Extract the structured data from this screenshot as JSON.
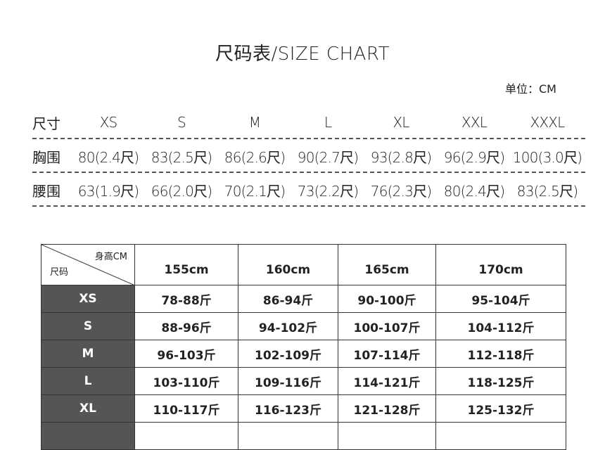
{
  "title": "尺码表/SIZE CHART",
  "unit": "单位：CM",
  "size_rows": [
    {
      "label": "尺寸",
      "values": [
        "XS",
        "S",
        "M",
        "L",
        "XL",
        "XXL",
        "XXXL"
      ]
    },
    {
      "label": "胸围",
      "values": [
        "80(2.4尺)",
        "83(2.5尺)",
        "86(2.6尺)",
        "90(2.7尺)",
        "93(2.8尺)",
        "96(2.9尺)",
        "100(3.0尺)"
      ]
    },
    {
      "label": "腰围",
      "values": [
        "63(1.9尺)",
        "66(2.0尺)",
        "70(2.1尺)",
        "73(2.2尺)",
        "76(2.3尺)",
        "80(2.4尺)",
        "83(2.5尺)"
      ]
    }
  ],
  "weight_table": {
    "corner_top": "身高CM",
    "corner_bottom": "尺码",
    "headers": [
      "155cm",
      "160cm",
      "165cm",
      "170cm"
    ],
    "rows": [
      {
        "size": "XS",
        "values": [
          "78-88斤",
          "86-94斤",
          "90-100斤",
          "95-104斤"
        ]
      },
      {
        "size": "S",
        "values": [
          "88-96斤",
          "94-102斤",
          "100-107斤",
          "104-112斤"
        ]
      },
      {
        "size": "M",
        "values": [
          "96-103斤",
          "102-109斤",
          "107-114斤",
          "112-118斤"
        ]
      },
      {
        "size": "L",
        "values": [
          "103-110斤",
          "109-116斤",
          "114-121斤",
          "118-125斤"
        ]
      },
      {
        "size": "XL",
        "values": [
          "110-117斤",
          "116-123斤",
          "121-128斤",
          "125-132斤"
        ]
      },
      {
        "size": "",
        "values": [
          "",
          "",
          "",
          ""
        ]
      }
    ]
  }
}
